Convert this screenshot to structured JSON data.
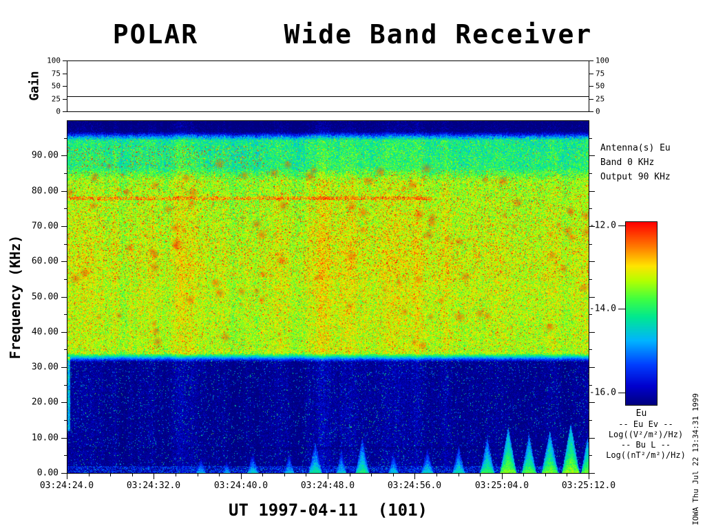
{
  "title": "POLAR     Wide Band Receiver",
  "gain_panel": {
    "label": "Gain",
    "tick_labels": [
      "100",
      "75",
      "50",
      "25",
      "0"
    ],
    "tick_values": [
      100,
      75,
      50,
      25,
      0
    ],
    "value": 30
  },
  "spectrogram": {
    "ylabel": "Frequency (KHz)",
    "xlabel": "UT 1997-04-11  (101)",
    "freq_tick_labels": [
      "90.00",
      "80.00",
      "70.00",
      "60.00",
      "50.00",
      "40.00",
      "30.00",
      "20.00",
      "10.00",
      "0.00"
    ],
    "freq_tick_values": [
      90,
      80,
      70,
      60,
      50,
      40,
      30,
      20,
      10,
      0
    ],
    "time_tick_labels": [
      "03:24:24.0",
      "03:24:32.0",
      "03:24:40.0",
      "03:24:48.0",
      "03:24:56.0",
      "03:25:04.0",
      "03:25:12.0"
    ]
  },
  "right_panel": {
    "antenna": "Antenna(s) Eu",
    "band": "Band 0 KHz",
    "output": "Output 90 KHz"
  },
  "colorbar": {
    "tick_labels": [
      "-12.0",
      "-14.0",
      "-16.0"
    ],
    "tick_values": [
      -12,
      -14,
      -16
    ],
    "label": "Eu",
    "legend": [
      "-- Eu Ev --",
      "Log((V²/m²)/Hz)",
      "-- Bu L --",
      "Log((nT²/m²)/Hz)"
    ]
  },
  "side_note": "IOWA Thu Jul 22 13:34:31 1999",
  "chart_data": {
    "type": "heatmap",
    "title": "POLAR Wide Band Receiver",
    "xlabel": "UT 1997-04-11 (101)",
    "ylabel": "Frequency (KHz)",
    "x_ticks": [
      "03:24:24.0",
      "03:24:32.0",
      "03:24:40.0",
      "03:24:48.0",
      "03:24:56.0",
      "03:25:04.0",
      "03:25:12.0"
    ],
    "x_span_seconds": 48,
    "ylim": [
      0,
      100
    ],
    "y_ticks": [
      0,
      10,
      20,
      30,
      40,
      50,
      60,
      70,
      80,
      90
    ],
    "z_label": "Log((V²/m²)/Hz)",
    "z_ticks": [
      -12,
      -14,
      -16
    ],
    "z_range": [
      -16.3,
      -11.9
    ],
    "gain_series": {
      "label": "Gain",
      "ylim": [
        0,
        100
      ],
      "value": 30
    },
    "profile": [
      [
        0,
        -16.2
      ],
      [
        31.5,
        -16.2
      ],
      [
        34,
        -13.3
      ],
      [
        60,
        -13.2
      ],
      [
        83,
        -13.4
      ],
      [
        86.5,
        -14.0
      ],
      [
        94.5,
        -14.1
      ],
      [
        97,
        -16.3
      ],
      [
        100,
        -16.4
      ]
    ],
    "features": {
      "intense_band_khz": [
        33,
        85
      ],
      "upper_green_band_khz": [
        85,
        96
      ],
      "noise_floor_below_khz": 33,
      "red_interference_line_khz": 78,
      "dark_line_khz": 7
    },
    "bursts": [
      {
        "t": 0.255,
        "w": 0.01,
        "fmax": 5,
        "level": -14.7
      },
      {
        "t": 0.305,
        "w": 0.008,
        "fmax": 4,
        "level": -14.8
      },
      {
        "t": 0.355,
        "w": 0.011,
        "fmax": 6,
        "level": -14.5
      },
      {
        "t": 0.425,
        "w": 0.01,
        "fmax": 6,
        "level": -14.6
      },
      {
        "t": 0.475,
        "w": 0.013,
        "fmax": 9,
        "level": -14.2
      },
      {
        "t": 0.525,
        "w": 0.01,
        "fmax": 7,
        "level": -14.5
      },
      {
        "t": 0.565,
        "w": 0.013,
        "fmax": 10,
        "level": -14.1
      },
      {
        "t": 0.625,
        "w": 0.01,
        "fmax": 6,
        "level": -14.5
      },
      {
        "t": 0.69,
        "w": 0.012,
        "fmax": 7,
        "level": -14.4
      },
      {
        "t": 0.75,
        "w": 0.012,
        "fmax": 8,
        "level": -14.3
      },
      {
        "t": 0.805,
        "w": 0.014,
        "fmax": 10,
        "level": -13.9
      },
      {
        "t": 0.845,
        "w": 0.016,
        "fmax": 13,
        "level": -13.5
      },
      {
        "t": 0.885,
        "w": 0.014,
        "fmax": 11,
        "level": -13.7
      },
      {
        "t": 0.925,
        "w": 0.016,
        "fmax": 12,
        "level": -13.6
      },
      {
        "t": 0.965,
        "w": 0.017,
        "fmax": 14,
        "level": -13.4
      },
      {
        "t": 0.997,
        "w": 0.012,
        "fmax": 10,
        "level": -13.6
      }
    ],
    "colormap": [
      {
        "t": 0.0,
        "c": "#000080"
      },
      {
        "t": 0.1,
        "c": "#0000cd"
      },
      {
        "t": 0.22,
        "c": "#0040ff"
      },
      {
        "t": 0.35,
        "c": "#00b4ff"
      },
      {
        "t": 0.48,
        "c": "#00e890"
      },
      {
        "t": 0.58,
        "c": "#40ff40"
      },
      {
        "t": 0.68,
        "c": "#b4ff00"
      },
      {
        "t": 0.76,
        "c": "#ffe400"
      },
      {
        "t": 0.86,
        "c": "#ff8000"
      },
      {
        "t": 1.0,
        "c": "#ff0000"
      }
    ]
  }
}
